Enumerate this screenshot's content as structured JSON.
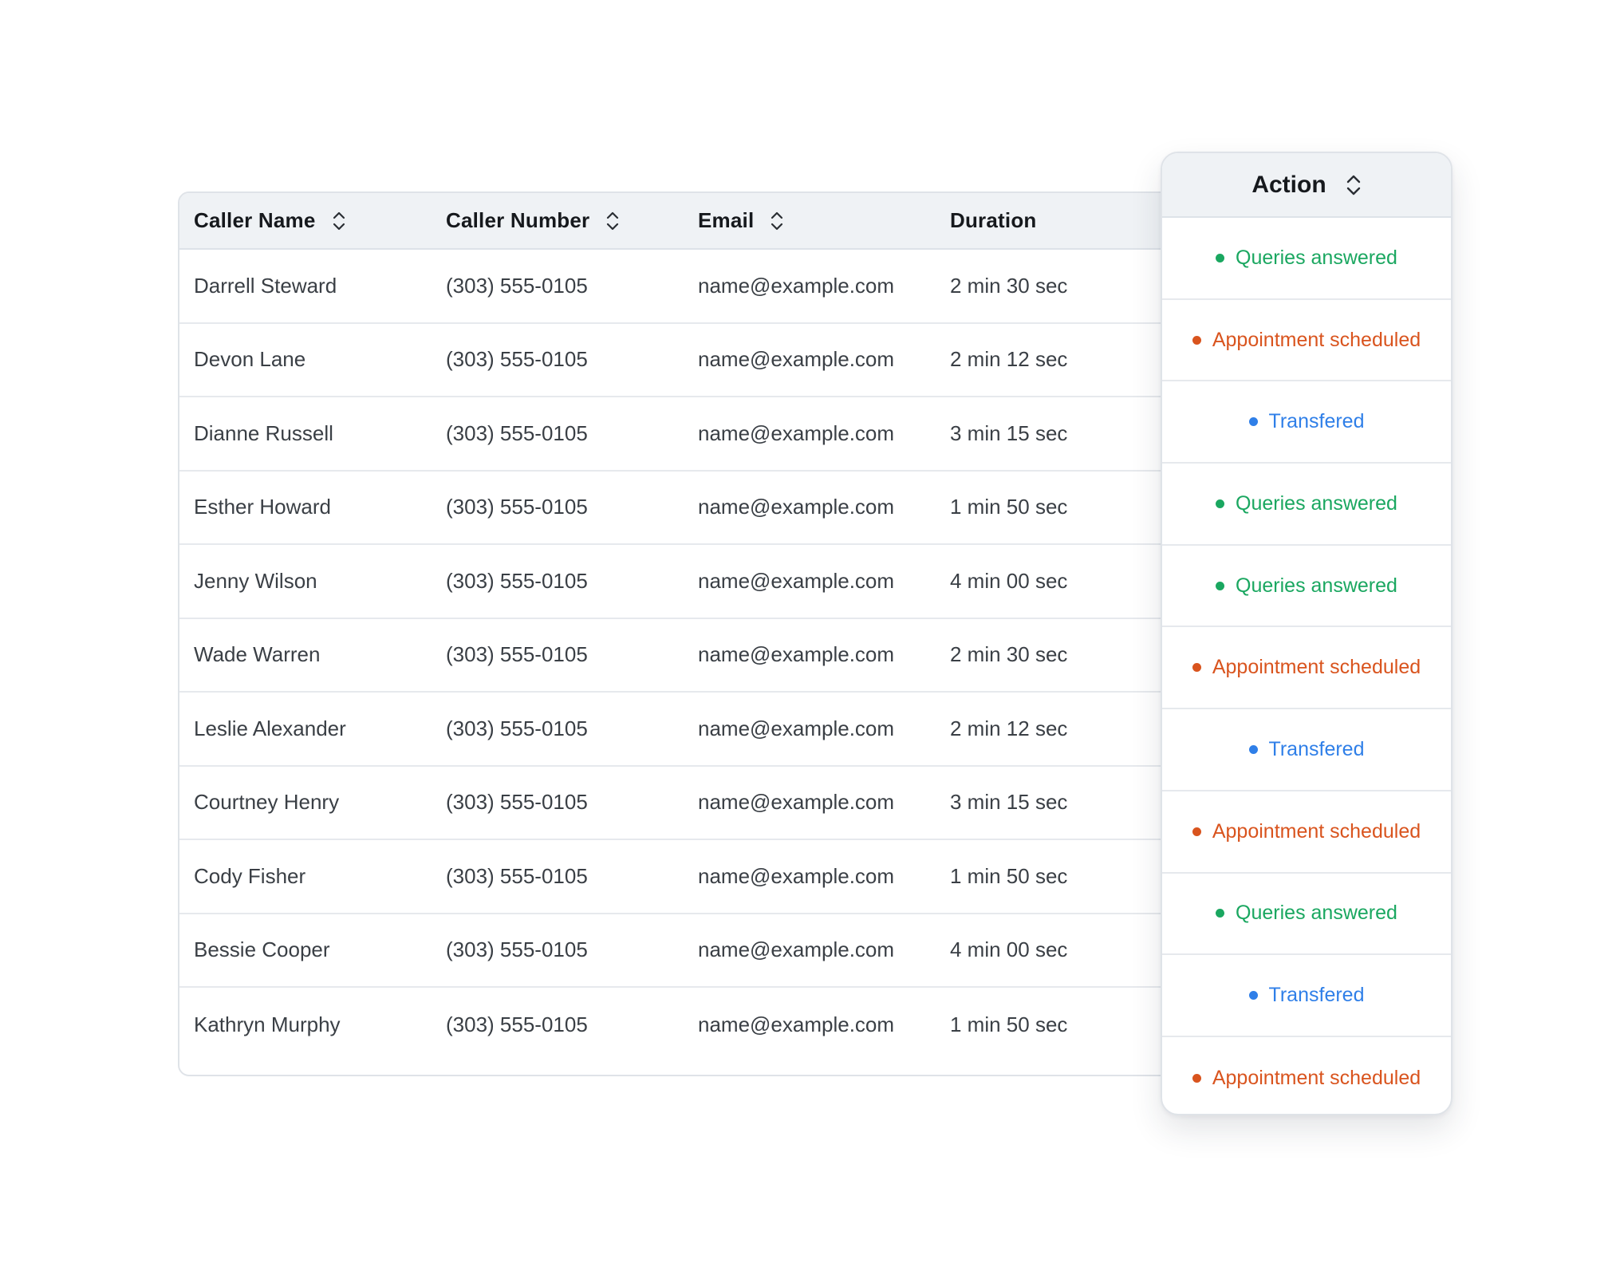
{
  "colors": {
    "queries_answered": "#1aa760",
    "appointment_scheduled": "#d9541e",
    "transfered": "#2f7fe8",
    "header_bg": "#eff2f5",
    "border": "#dfe3e8"
  },
  "table": {
    "columns": [
      {
        "label": "Caller Name",
        "sortable": true,
        "sort_icon": "sort-updown-icon"
      },
      {
        "label": "Caller Number",
        "sortable": true,
        "sort_icon": "sort-updown-icon"
      },
      {
        "label": "Email",
        "sortable": true,
        "sort_icon": "sort-updown-icon"
      },
      {
        "label": "Duration",
        "sortable": false
      }
    ],
    "rows": [
      {
        "name": "Darrell Steward",
        "number": "(303) 555-0105",
        "email": "name@example.com",
        "duration": "2 min 30 sec"
      },
      {
        "name": "Devon Lane",
        "number": "(303) 555-0105",
        "email": "name@example.com",
        "duration": "2 min 12 sec"
      },
      {
        "name": "Dianne Russell",
        "number": "(303) 555-0105",
        "email": "name@example.com",
        "duration": "3 min 15 sec"
      },
      {
        "name": "Esther Howard",
        "number": "(303) 555-0105",
        "email": "name@example.com",
        "duration": "1 min 50 sec"
      },
      {
        "name": "Jenny Wilson",
        "number": "(303) 555-0105",
        "email": "name@example.com",
        "duration": "4 min 00 sec"
      },
      {
        "name": "Wade Warren",
        "number": "(303) 555-0105",
        "email": "name@example.com",
        "duration": "2 min 30 sec"
      },
      {
        "name": "Leslie Alexander",
        "number": "(303) 555-0105",
        "email": "name@example.com",
        "duration": "2 min 12 sec"
      },
      {
        "name": "Courtney Henry",
        "number": "(303) 555-0105",
        "email": "name@example.com",
        "duration": "3 min 15 sec"
      },
      {
        "name": "Cody Fisher",
        "number": "(303) 555-0105",
        "email": "name@example.com",
        "duration": "1 min 50 sec"
      },
      {
        "name": "Bessie Cooper",
        "number": "(303) 555-0105",
        "email": "name@example.com",
        "duration": "4 min 00 sec"
      },
      {
        "name": "Kathryn Murphy",
        "number": "(303) 555-0105",
        "email": "name@example.com",
        "duration": "1 min 50 sec"
      }
    ]
  },
  "action": {
    "header": "Action",
    "sort_icon": "sort-updown-icon",
    "items": [
      {
        "label": "Queries answered",
        "status": "queries_answered"
      },
      {
        "label": "Appointment scheduled",
        "status": "appointment_scheduled"
      },
      {
        "label": "Transfered",
        "status": "transfered"
      },
      {
        "label": "Queries answered",
        "status": "queries_answered"
      },
      {
        "label": "Queries answered",
        "status": "queries_answered"
      },
      {
        "label": "Appointment scheduled",
        "status": "appointment_scheduled"
      },
      {
        "label": "Transfered",
        "status": "transfered"
      },
      {
        "label": "Appointment scheduled",
        "status": "appointment_scheduled"
      },
      {
        "label": "Queries answered",
        "status": "queries_answered"
      },
      {
        "label": "Transfered",
        "status": "transfered"
      },
      {
        "label": "Appointment scheduled",
        "status": "appointment_scheduled"
      }
    ]
  }
}
